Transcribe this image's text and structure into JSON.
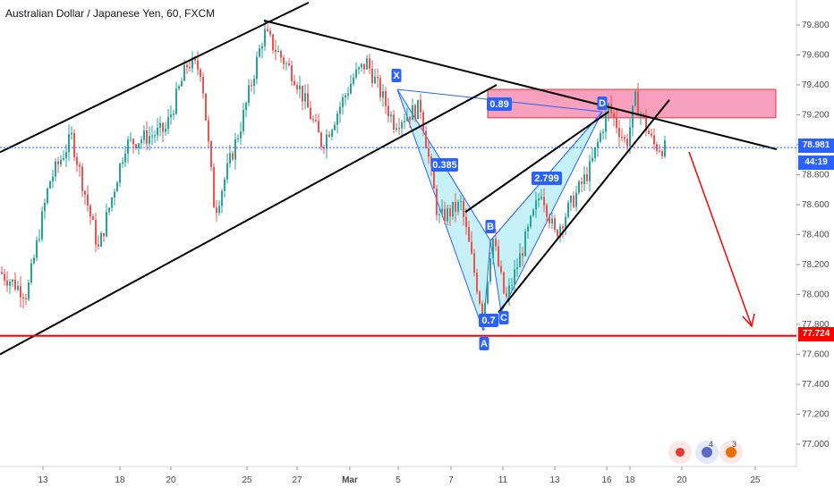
{
  "title": "Australian Dollar / Japanese Yen, 60, FXCM",
  "price_labels": {
    "current": "78.981",
    "countdown": "44:19",
    "target": "77.724"
  },
  "icons": {
    "record_icon": "record-icon",
    "ideas_count": "4",
    "comments_count": "3"
  },
  "colors": {
    "up": "#26a69a",
    "down": "#ef5350",
    "pattern_fill": "#b2ebf2",
    "pattern_line": "#2962ff",
    "zone_fill": "#f48fb1",
    "target_line": "#ff0000",
    "current_line": "#2962ff"
  },
  "chart_data": {
    "type": "candlestick",
    "ylim": [
      76.9,
      79.9
    ],
    "y_ticks": [
      "79.800",
      "79.600",
      "79.400",
      "79.200",
      "79.000",
      "78.800",
      "78.600",
      "78.400",
      "78.200",
      "78.000",
      "77.800",
      "77.600",
      "77.400",
      "77.200",
      "77.000"
    ],
    "x_ticks": [
      "13",
      "18",
      "20",
      "25",
      "27",
      "Mar",
      "5",
      "7",
      "11",
      "13",
      "16",
      "18",
      "20",
      "25"
    ],
    "current_price": 78.981,
    "target_price": 77.724,
    "harmonic_points": [
      {
        "label": "X",
        "x": "5",
        "y": 79.37
      },
      {
        "label": "A",
        "x": "9",
        "y": 77.76
      },
      {
        "label": "B",
        "x": "10",
        "y": 78.36
      },
      {
        "label": "C",
        "x": "11",
        "y": 77.88
      },
      {
        "label": "D",
        "x": "16",
        "y": 79.22
      }
    ],
    "ratios": [
      "0.385",
      "0.7",
      "2.799",
      "0.89"
    ]
  }
}
